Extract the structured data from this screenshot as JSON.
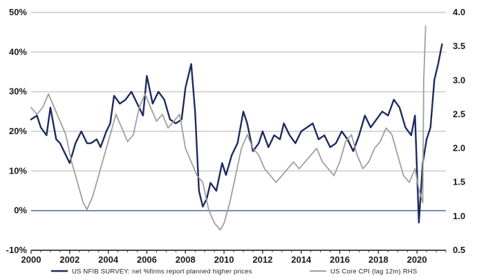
{
  "chart_data": {
    "type": "line",
    "title": "",
    "xlabel": "",
    "ylabel_left": "",
    "ylabel_right": "",
    "x_range": [
      2000,
      2021.5
    ],
    "x_ticks": [
      "2000",
      "2002",
      "2004",
      "2006",
      "2008",
      "2010",
      "2012",
      "2014",
      "2016",
      "2018",
      "2020"
    ],
    "x_tick_values": [
      2000,
      2002,
      2004,
      2006,
      2008,
      2010,
      2012,
      2014,
      2016,
      2018,
      2020
    ],
    "y_left_range": [
      -10,
      50
    ],
    "y_left_ticks": [
      "-10%",
      "0%",
      "10%",
      "20%",
      "30%",
      "40%",
      "50%"
    ],
    "y_left_tick_values": [
      -10,
      0,
      10,
      20,
      30,
      40,
      50
    ],
    "y_right_range": [
      0.5,
      4.0
    ],
    "y_right_ticks": [
      "0.5",
      "1.0",
      "1.5",
      "2.0",
      "2.5",
      "3.0",
      "3.5",
      "4.0"
    ],
    "y_right_tick_values": [
      0.5,
      1.0,
      1.5,
      2.0,
      2.5,
      3.0,
      3.5,
      4.0
    ],
    "grid": "horizontal",
    "legend_position": "bottom",
    "colors": {
      "nfib": "#1c2a5e",
      "cpi": "#9e9e9e",
      "grid": "#c8c8c8",
      "zero_line": "#5a6f8f"
    },
    "series": [
      {
        "name": "US NFIB SURVEY: net %firms report planned higher prices",
        "axis": "left",
        "color": "#1c2a5e",
        "x": [
          2000.0,
          2000.3,
          2000.5,
          2000.8,
          2001.0,
          2001.3,
          2001.5,
          2001.8,
          2002.0,
          2002.3,
          2002.6,
          2002.9,
          2003.1,
          2003.4,
          2003.6,
          2003.9,
          2004.1,
          2004.3,
          2004.6,
          2004.9,
          2005.2,
          2005.5,
          2005.8,
          2006.0,
          2006.3,
          2006.6,
          2006.9,
          2007.2,
          2007.5,
          2007.8,
          2008.0,
          2008.3,
          2008.5,
          2008.7,
          2008.9,
          2009.1,
          2009.3,
          2009.6,
          2009.9,
          2010.1,
          2010.4,
          2010.7,
          2011.0,
          2011.2,
          2011.5,
          2011.8,
          2012.0,
          2012.3,
          2012.6,
          2012.9,
          2013.1,
          2013.4,
          2013.7,
          2014.0,
          2014.3,
          2014.6,
          2014.9,
          2015.2,
          2015.5,
          2015.8,
          2016.1,
          2016.4,
          2016.7,
          2017.0,
          2017.3,
          2017.6,
          2017.9,
          2018.2,
          2018.5,
          2018.8,
          2019.1,
          2019.4,
          2019.7,
          2019.9,
          2020.1,
          2020.3,
          2020.5,
          2020.7,
          2020.9,
          2021.1,
          2021.3
        ],
        "values": [
          23,
          24,
          21,
          19,
          26,
          18,
          17,
          14,
          12,
          17,
          20,
          17,
          17,
          18,
          16,
          20,
          22,
          29,
          27,
          28,
          30,
          27,
          24,
          34,
          27,
          30,
          28,
          23,
          22,
          23,
          31,
          37,
          25,
          5,
          1,
          3,
          7,
          5,
          12,
          9,
          14,
          17,
          25,
          22,
          15,
          17,
          20,
          16,
          19,
          18,
          22,
          19,
          17,
          20,
          21,
          22,
          18,
          19,
          16,
          17,
          20,
          18,
          15,
          19,
          24,
          21,
          23,
          25,
          24,
          28,
          26,
          21,
          19,
          24,
          -3,
          12,
          18,
          21,
          33,
          37,
          42
        ]
      },
      {
        "name": "US Core CPI (lag 12m) RHS",
        "axis": "right",
        "color": "#9e9e9e",
        "x": [
          2000.0,
          2000.3,
          2000.6,
          2000.9,
          2001.2,
          2001.5,
          2001.8,
          2002.1,
          2002.4,
          2002.7,
          2002.9,
          2003.2,
          2003.5,
          2003.8,
          2004.1,
          2004.4,
          2004.7,
          2005.0,
          2005.3,
          2005.6,
          2005.9,
          2006.2,
          2006.5,
          2006.8,
          2007.1,
          2007.4,
          2007.7,
          2008.0,
          2008.3,
          2008.6,
          2008.9,
          2009.2,
          2009.5,
          2009.8,
          2010.0,
          2010.3,
          2010.6,
          2010.9,
          2011.2,
          2011.5,
          2011.8,
          2012.1,
          2012.4,
          2012.7,
          2013.0,
          2013.3,
          2013.6,
          2013.9,
          2014.2,
          2014.5,
          2014.8,
          2015.1,
          2015.4,
          2015.7,
          2016.0,
          2016.3,
          2016.6,
          2016.9,
          2017.2,
          2017.5,
          2017.8,
          2018.1,
          2018.4,
          2018.7,
          2019.0,
          2019.3,
          2019.6,
          2019.9,
          2020.1,
          2020.3,
          2020.35,
          2020.45
        ],
        "values": [
          2.6,
          2.5,
          2.6,
          2.8,
          2.6,
          2.4,
          2.2,
          1.8,
          1.5,
          1.2,
          1.1,
          1.3,
          1.6,
          1.9,
          2.2,
          2.5,
          2.3,
          2.1,
          2.2,
          2.6,
          2.8,
          2.6,
          2.4,
          2.5,
          2.3,
          2.4,
          2.5,
          2.0,
          1.8,
          1.6,
          1.5,
          1.1,
          0.9,
          0.8,
          0.9,
          1.2,
          1.6,
          2.0,
          2.2,
          2.0,
          1.9,
          1.7,
          1.6,
          1.5,
          1.6,
          1.7,
          1.8,
          1.7,
          1.8,
          1.9,
          2.0,
          1.8,
          1.7,
          1.6,
          1.8,
          2.1,
          2.2,
          1.9,
          1.7,
          1.8,
          2.0,
          2.1,
          2.3,
          2.2,
          1.9,
          1.6,
          1.5,
          1.7,
          1.4,
          1.2,
          3.0,
          3.8
        ]
      }
    ]
  }
}
